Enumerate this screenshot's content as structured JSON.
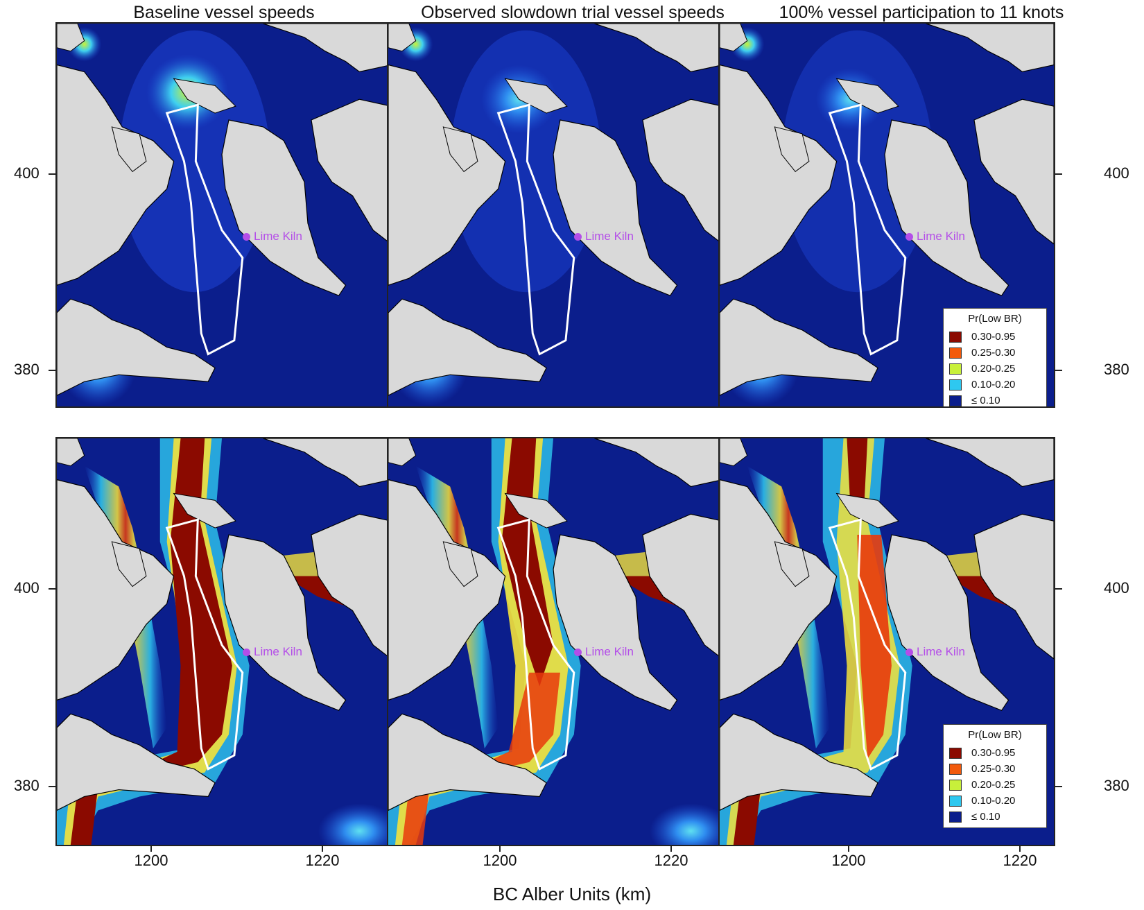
{
  "columns": [
    {
      "title": "Baseline vessel speeds"
    },
    {
      "title": "Observed slowdown trial vessel speeds"
    },
    {
      "title": "100% vessel participation to 11 knots"
    }
  ],
  "x_axis": {
    "label": "BC Alber Units (km)",
    "ticks": [
      "1200",
      "1220"
    ]
  },
  "y_axis": {
    "ticks": [
      "400",
      "380"
    ]
  },
  "place_label": "Lime Kiln",
  "legend": {
    "title": "Pr(Low BR)",
    "items": [
      {
        "label": "0.30-0.95",
        "color": "#8b0a00"
      },
      {
        "label": "0.25-0.30",
        "color": "#f25a0c"
      },
      {
        "label": "0.20-0.25",
        "color": "#c8f03a"
      },
      {
        "label": "0.10-0.20",
        "color": "#2ec8f0"
      },
      {
        "label": "≤ 0.10",
        "color": "#0b1e8c"
      }
    ]
  },
  "colors": {
    "water": "#0b1e8c",
    "land": "#d9d9d9",
    "coast": "#000000",
    "zone_outline": "#ffffff",
    "place": "#b44ee8"
  }
}
